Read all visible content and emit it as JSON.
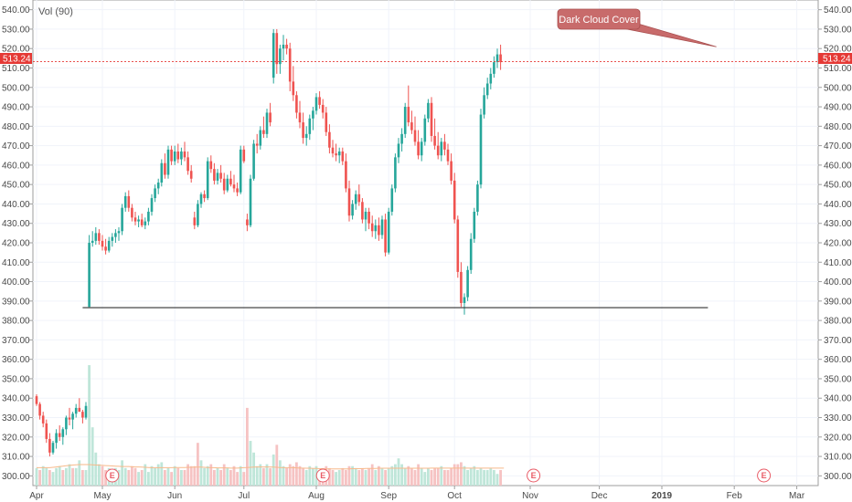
{
  "indicator_label": "Vol (90)",
  "last_price_label": "513.24",
  "colors": {
    "up": "#26a69a",
    "down": "#ef5350",
    "up_vol": "#bfe6d9",
    "down_vol": "#f6c3c3",
    "support": "#333333",
    "price_line": "#e53935",
    "annotation": "#c86b6b"
  },
  "chart_data": {
    "type": "candlestick",
    "y_axis": {
      "min": 295,
      "max": 545,
      "ticks": [
        300,
        310,
        320,
        330,
        340,
        350,
        360,
        370,
        380,
        390,
        400,
        410,
        420,
        430,
        440,
        450,
        460,
        470,
        480,
        490,
        500,
        510,
        520,
        530,
        540
      ],
      "tick_labels": [
        "300.00",
        "310.00",
        "320.00",
        "330.00",
        "340.00",
        "350.00",
        "360.00",
        "370.00",
        "380.00",
        "390.00",
        "400.00",
        "410.00",
        "420.00",
        "430.00",
        "440.00",
        "450.00",
        "460.00",
        "470.00",
        "480.00",
        "490.00",
        "500.00",
        "510.00",
        "520.00",
        "530.00",
        "540.00"
      ]
    },
    "x_axis": {
      "labels": [
        {
          "label": "Apr",
          "x": 0
        },
        {
          "label": "May",
          "x": 20
        },
        {
          "label": "Jun",
          "x": 42
        },
        {
          "label": "Jul",
          "x": 63
        },
        {
          "label": "Aug",
          "x": 85
        },
        {
          "label": "Sep",
          "x": 107
        },
        {
          "label": "Oct",
          "x": 127
        },
        {
          "label": "Nov",
          "x": 150
        },
        {
          "label": "Dec",
          "x": 171
        },
        {
          "label": "2019",
          "x": 190
        },
        {
          "label": "Feb",
          "x": 212
        },
        {
          "label": "Mar",
          "x": 231
        }
      ]
    },
    "candles": [
      [
        341,
        342,
        336,
        337
      ],
      [
        337,
        338,
        329,
        331
      ],
      [
        331,
        333,
        325,
        327
      ],
      [
        327,
        329,
        317,
        319
      ],
      [
        319,
        322,
        310,
        312
      ],
      [
        312,
        318,
        311,
        317
      ],
      [
        317,
        324,
        314,
        322
      ],
      [
        322,
        326,
        318,
        320
      ],
      [
        320,
        325,
        316,
        324
      ],
      [
        324,
        331,
        321,
        330
      ],
      [
        330,
        335,
        326,
        329
      ],
      [
        329,
        333,
        324,
        332
      ],
      [
        332,
        337,
        330,
        335
      ],
      [
        335,
        340,
        333,
        333
      ],
      [
        333,
        334,
        327,
        330
      ],
      [
        330,
        338,
        329,
        336
      ],
      [
        387,
        424,
        387,
        420
      ],
      [
        420,
        426,
        418,
        421
      ],
      [
        421,
        428,
        419,
        425
      ],
      [
        425,
        427,
        419,
        421
      ],
      [
        421,
        424,
        416,
        418
      ],
      [
        418,
        422,
        414,
        416
      ],
      [
        416,
        423,
        415,
        421
      ],
      [
        421,
        425,
        418,
        423
      ],
      [
        423,
        427,
        420,
        425
      ],
      [
        425,
        428,
        421,
        426
      ],
      [
        426,
        440,
        424,
        438
      ],
      [
        438,
        446,
        436,
        444
      ],
      [
        444,
        447,
        436,
        438
      ],
      [
        438,
        440,
        431,
        433
      ],
      [
        433,
        436,
        429,
        431
      ],
      [
        431,
        434,
        428,
        432
      ],
      [
        432,
        435,
        428,
        429
      ],
      [
        429,
        433,
        427,
        431
      ],
      [
        431,
        438,
        429,
        436
      ],
      [
        436,
        445,
        434,
        443
      ],
      [
        443,
        450,
        441,
        448
      ],
      [
        448,
        453,
        445,
        451
      ],
      [
        451,
        463,
        449,
        461
      ],
      [
        461,
        466,
        453,
        455
      ],
      [
        455,
        470,
        453,
        468
      ],
      [
        468,
        470,
        460,
        462
      ],
      [
        462,
        470,
        460,
        467
      ],
      [
        467,
        471,
        461,
        463
      ],
      [
        463,
        469,
        460,
        467
      ],
      [
        467,
        472,
        462,
        464
      ],
      [
        464,
        467,
        455,
        457
      ],
      [
        457,
        460,
        451,
        453
      ],
      [
        433,
        436,
        427,
        429
      ],
      [
        429,
        442,
        428,
        440
      ],
      [
        440,
        446,
        438,
        445
      ],
      [
        445,
        447,
        441,
        443
      ],
      [
        443,
        464,
        442,
        462
      ],
      [
        462,
        465,
        456,
        458
      ],
      [
        458,
        461,
        450,
        452
      ],
      [
        452,
        458,
        450,
        456
      ],
      [
        456,
        460,
        451,
        453
      ],
      [
        453,
        456,
        445,
        447
      ],
      [
        447,
        455,
        446,
        453
      ],
      [
        453,
        457,
        449,
        450
      ],
      [
        450,
        455,
        446,
        448
      ],
      [
        448,
        451,
        444,
        446
      ],
      [
        446,
        470,
        445,
        468
      ],
      [
        468,
        470,
        461,
        462
      ],
      [
        432,
        435,
        426,
        429
      ],
      [
        429,
        455,
        428,
        453
      ],
      [
        453,
        473,
        452,
        471
      ],
      [
        471,
        476,
        466,
        470
      ],
      [
        470,
        480,
        468,
        478
      ],
      [
        478,
        485,
        474,
        476
      ],
      [
        476,
        489,
        474,
        487
      ],
      [
        487,
        492,
        480,
        482
      ],
      [
        505,
        530,
        502,
        528
      ],
      [
        528,
        530,
        507,
        512
      ],
      [
        512,
        522,
        507,
        520
      ],
      [
        520,
        527,
        514,
        522
      ],
      [
        522,
        525,
        517,
        520
      ],
      [
        520,
        523,
        498,
        503
      ],
      [
        503,
        511,
        493,
        496
      ],
      [
        496,
        498,
        484,
        487
      ],
      [
        487,
        493,
        479,
        482
      ],
      [
        482,
        487,
        471,
        474
      ],
      [
        474,
        480,
        470,
        476
      ],
      [
        476,
        486,
        473,
        484
      ],
      [
        484,
        490,
        478,
        488
      ],
      [
        488,
        497,
        486,
        495
      ],
      [
        495,
        498,
        489,
        491
      ],
      [
        491,
        494,
        484,
        487
      ],
      [
        487,
        490,
        475,
        477
      ],
      [
        477,
        481,
        466,
        469
      ],
      [
        469,
        473,
        464,
        466
      ],
      [
        466,
        471,
        462,
        465
      ],
      [
        465,
        469,
        461,
        467
      ],
      [
        467,
        469,
        460,
        462
      ],
      [
        462,
        466,
        446,
        448
      ],
      [
        448,
        452,
        431,
        434
      ],
      [
        434,
        442,
        432,
        440
      ],
      [
        440,
        447,
        437,
        445
      ],
      [
        445,
        450,
        439,
        441
      ],
      [
        441,
        443,
        430,
        432
      ],
      [
        432,
        438,
        426,
        436
      ],
      [
        436,
        438,
        427,
        430
      ],
      [
        430,
        434,
        423,
        426
      ],
      [
        426,
        432,
        422,
        429
      ],
      [
        429,
        433,
        421,
        424
      ],
      [
        424,
        434,
        422,
        432
      ],
      [
        432,
        435,
        413,
        415
      ],
      [
        415,
        438,
        414,
        436
      ],
      [
        436,
        450,
        434,
        448
      ],
      [
        448,
        466,
        446,
        464
      ],
      [
        464,
        474,
        461,
        471
      ],
      [
        471,
        479,
        467,
        476
      ],
      [
        476,
        492,
        474,
        490
      ],
      [
        490,
        501,
        480,
        482
      ],
      [
        482,
        488,
        476,
        478
      ],
      [
        478,
        485,
        470,
        472
      ],
      [
        472,
        478,
        463,
        465
      ],
      [
        465,
        474,
        462,
        472
      ],
      [
        472,
        486,
        470,
        484
      ],
      [
        484,
        494,
        482,
        492
      ],
      [
        492,
        495,
        472,
        475
      ],
      [
        475,
        484,
        468,
        470
      ],
      [
        470,
        477,
        463,
        465
      ],
      [
        465,
        474,
        462,
        472
      ],
      [
        472,
        476,
        465,
        468
      ],
      [
        468,
        471,
        460,
        462
      ],
      [
        462,
        466,
        450,
        452
      ],
      [
        452,
        456,
        430,
        432
      ],
      [
        432,
        434,
        402,
        405
      ],
      [
        405,
        410,
        387,
        389
      ],
      [
        389,
        394,
        383,
        392
      ],
      [
        392,
        408,
        390,
        406
      ],
      [
        406,
        425,
        404,
        422
      ],
      [
        422,
        438,
        420,
        436
      ],
      [
        436,
        452,
        434,
        450
      ],
      [
        450,
        489,
        448,
        486
      ],
      [
        486,
        500,
        484,
        496
      ],
      [
        496,
        505,
        494,
        502
      ],
      [
        502,
        510,
        499,
        507
      ],
      [
        507,
        516,
        505,
        513
      ],
      [
        513,
        520,
        510,
        517
      ],
      [
        517,
        522,
        509,
        513
      ]
    ],
    "volumes": [
      [
        304,
        1
      ],
      [
        303,
        0
      ],
      [
        305,
        1
      ],
      [
        304,
        1
      ],
      [
        303,
        0
      ],
      [
        302,
        1
      ],
      [
        304,
        1
      ],
      [
        305,
        1
      ],
      [
        303,
        0
      ],
      [
        304,
        1
      ],
      [
        306,
        1
      ],
      [
        304,
        0
      ],
      [
        304,
        1
      ],
      [
        308,
        1
      ],
      [
        303,
        0
      ],
      [
        303,
        1
      ],
      [
        357,
        1
      ],
      [
        325,
        1
      ],
      [
        312,
        1
      ],
      [
        306,
        1
      ],
      [
        305,
        0
      ],
      [
        303,
        0
      ],
      [
        304,
        1
      ],
      [
        302,
        1
      ],
      [
        304,
        1
      ],
      [
        303,
        1
      ],
      [
        308,
        1
      ],
      [
        304,
        1
      ],
      [
        303,
        0
      ],
      [
        305,
        0
      ],
      [
        304,
        0
      ],
      [
        302,
        1
      ],
      [
        303,
        0
      ],
      [
        306,
        1
      ],
      [
        302,
        1
      ],
      [
        305,
        1
      ],
      [
        304,
        1
      ],
      [
        306,
        1
      ],
      [
        307,
        1
      ],
      [
        303,
        0
      ],
      [
        304,
        1
      ],
      [
        302,
        0
      ],
      [
        305,
        1
      ],
      [
        304,
        0
      ],
      [
        303,
        1
      ],
      [
        303,
        0
      ],
      [
        306,
        0
      ],
      [
        305,
        0
      ],
      [
        305,
        0
      ],
      [
        317,
        0
      ],
      [
        308,
        1
      ],
      [
        304,
        1
      ],
      [
        305,
        1
      ],
      [
        306,
        0
      ],
      [
        303,
        0
      ],
      [
        304,
        1
      ],
      [
        303,
        0
      ],
      [
        306,
        0
      ],
      [
        304,
        1
      ],
      [
        303,
        0
      ],
      [
        305,
        0
      ],
      [
        302,
        0
      ],
      [
        305,
        1
      ],
      [
        302,
        0
      ],
      [
        335,
        0
      ],
      [
        318,
        1
      ],
      [
        312,
        1
      ],
      [
        305,
        1
      ],
      [
        306,
        1
      ],
      [
        304,
        0
      ],
      [
        306,
        1
      ],
      [
        304,
        0
      ],
      [
        311,
        1
      ],
      [
        316,
        0
      ],
      [
        308,
        1
      ],
      [
        305,
        1
      ],
      [
        304,
        0
      ],
      [
        306,
        0
      ],
      [
        305,
        0
      ],
      [
        307,
        0
      ],
      [
        305,
        0
      ],
      [
        304,
        0
      ],
      [
        303,
        1
      ],
      [
        305,
        1
      ],
      [
        304,
        1
      ],
      [
        305,
        1
      ],
      [
        303,
        0
      ],
      [
        303,
        0
      ],
      [
        305,
        0
      ],
      [
        304,
        0
      ],
      [
        303,
        0
      ],
      [
        302,
        1
      ],
      [
        303,
        1
      ],
      [
        304,
        0
      ],
      [
        303,
        0
      ],
      [
        305,
        0
      ],
      [
        305,
        1
      ],
      [
        304,
        1
      ],
      [
        303,
        0
      ],
      [
        304,
        0
      ],
      [
        303,
        1
      ],
      [
        304,
        0
      ],
      [
        306,
        0
      ],
      [
        303,
        1
      ],
      [
        305,
        0
      ],
      [
        304,
        1
      ],
      [
        303,
        0
      ],
      [
        304,
        1
      ],
      [
        305,
        1
      ],
      [
        306,
        1
      ],
      [
        309,
        1
      ],
      [
        306,
        1
      ],
      [
        304,
        1
      ],
      [
        305,
        0
      ],
      [
        304,
        0
      ],
      [
        303,
        0
      ],
      [
        306,
        0
      ],
      [
        304,
        1
      ],
      [
        302,
        1
      ],
      [
        304,
        1
      ],
      [
        303,
        0
      ],
      [
        304,
        0
      ],
      [
        304,
        0
      ],
      [
        305,
        1
      ],
      [
        303,
        0
      ],
      [
        303,
        0
      ],
      [
        304,
        0
      ],
      [
        306,
        0
      ],
      [
        306,
        0
      ],
      [
        307,
        0
      ],
      [
        305,
        1
      ],
      [
        303,
        1
      ],
      [
        304,
        1
      ],
      [
        305,
        1
      ],
      [
        303,
        1
      ],
      [
        304,
        1
      ],
      [
        303,
        1
      ],
      [
        303,
        1
      ],
      [
        304,
        1
      ],
      [
        303,
        1
      ],
      [
        301,
        1
      ],
      [
        303,
        0
      ]
    ],
    "volume_ma": [
      304.2,
      304.2,
      304.2,
      304.2,
      304.2,
      304.4,
      304.6,
      304.8,
      305,
      305.2,
      305.4,
      305.6,
      305.7,
      305.8,
      305.8,
      305.8,
      305.8,
      305.7,
      305.6,
      305.5,
      305.4,
      305.3,
      305.2,
      305.1,
      305,
      304.9,
      304.8,
      304.8,
      304.8,
      304.7,
      304.6,
      304.6,
      304.5,
      304.4,
      304.3,
      304.2,
      304.2,
      304.2,
      304.2,
      304.2,
      304.2,
      304.2,
      304.3,
      304.3,
      304.3,
      304.3,
      304.4,
      304.4,
      304.5,
      304.5,
      304.5,
      304.4,
      304.3,
      304.2,
      304.2,
      304.1,
      304.1,
      304.1,
      304.1,
      304,
      304,
      304,
      304.1,
      304.2,
      304.3,
      304.4,
      304.5,
      304.6,
      304.6,
      304.6,
      304.6,
      304.6,
      304.5,
      304.4,
      304.3,
      304.2,
      304.2,
      304.2,
      304.2,
      304.1,
      304,
      304,
      303.9,
      303.9,
      303.8,
      303.8,
      303.7,
      303.7,
      303.6,
      303.6,
      303.6,
      303.6,
      303.6,
      303.6,
      303.6,
      303.6,
      303.7,
      303.7,
      303.7,
      303.7,
      303.8,
      303.8,
      303.8,
      303.8,
      303.9,
      303.9,
      303.9,
      303.9,
      303.9,
      303.9,
      303.9,
      303.9,
      303.9,
      303.9,
      303.9,
      303.9,
      303.9,
      303.9,
      303.9,
      303.9,
      304,
      304,
      304,
      304,
      304,
      304,
      304,
      304,
      304,
      304,
      304,
      304,
      304,
      304,
      304,
      304,
      304,
      304,
      304,
      304,
      304,
      304,
      304
    ],
    "earnings_markers": [
      {
        "label": "E",
        "x": 23
      },
      {
        "label": "E",
        "x": 87
      },
      {
        "label": "E",
        "x": 151
      },
      {
        "label": "E",
        "x": 221
      }
    ],
    "support_line": {
      "y": 386.6,
      "x_start": 14,
      "x_end": 204
    },
    "last_price": 513.24,
    "annotations": [
      {
        "text": "Dark Cloud Cover",
        "x": 206,
        "y": 520
      }
    ],
    "grid": true
  }
}
